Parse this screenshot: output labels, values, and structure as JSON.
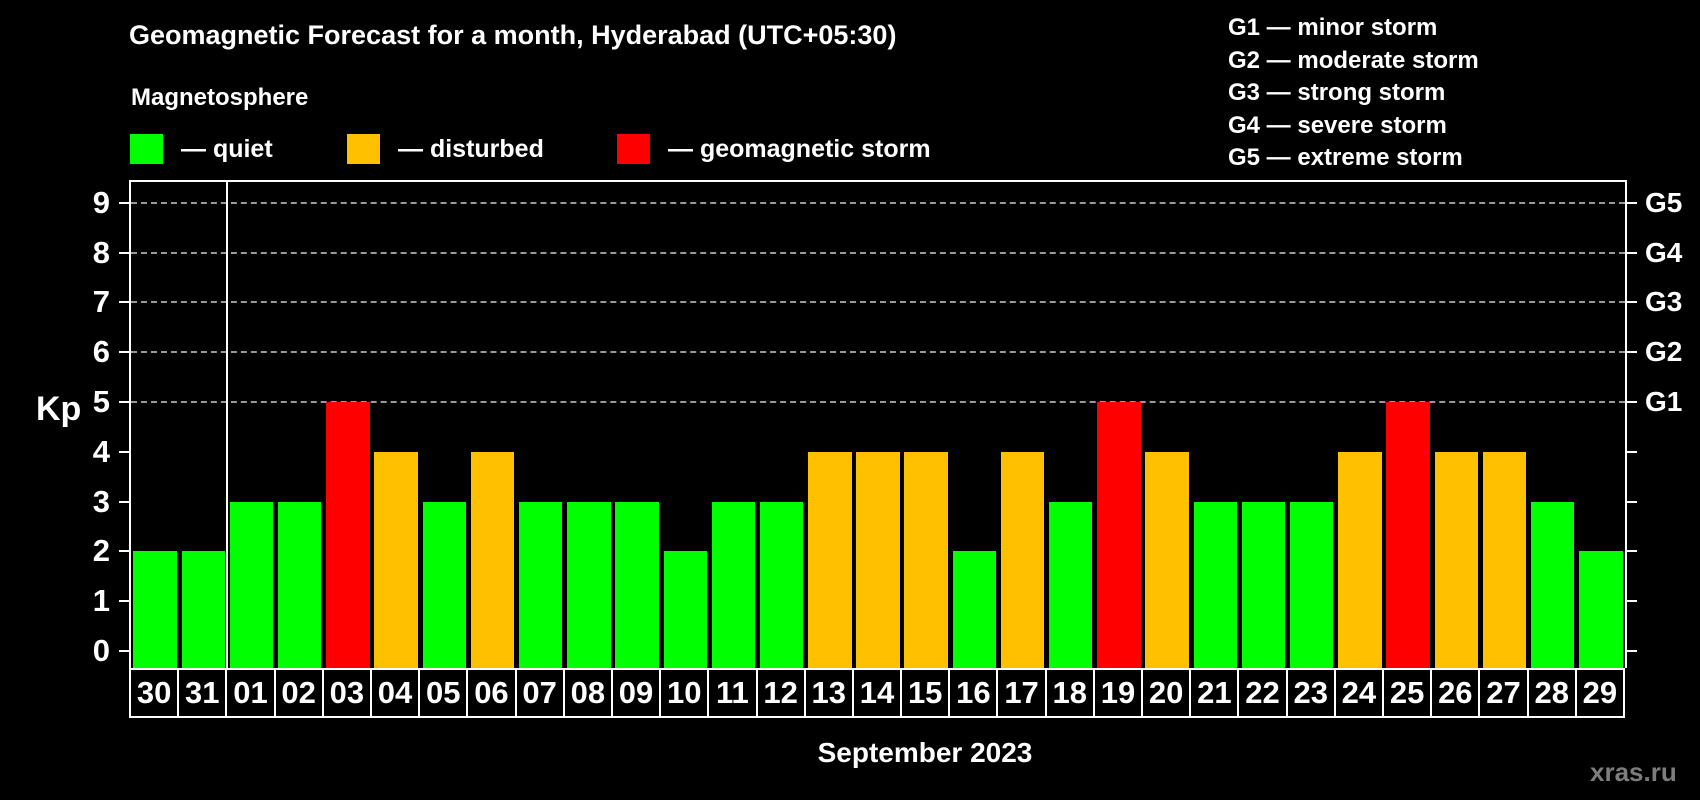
{
  "title": "Geomagnetic Forecast for a month, Hyderabad (UTC+05:30)",
  "subtitle": "Magnetosphere",
  "legend": {
    "items": [
      {
        "name": "quiet",
        "label": "— quiet",
        "color": "#00ff00"
      },
      {
        "name": "disturbed",
        "label": "— disturbed",
        "color": "#ffc000"
      },
      {
        "name": "storm",
        "label": "— geomagnetic storm",
        "color": "#ff0000"
      }
    ]
  },
  "g_legend": [
    "G1 — minor storm",
    "G2 — moderate storm",
    "G3 — strong storm",
    "G4 — severe storm",
    "G5 — extreme storm"
  ],
  "axis": {
    "y_label": "Kp",
    "y_ticks": [
      0,
      1,
      2,
      3,
      4,
      5,
      6,
      7,
      8,
      9
    ],
    "right_labels": [
      {
        "kp": 5,
        "label": "G1"
      },
      {
        "kp": 6,
        "label": "G2"
      },
      {
        "kp": 7,
        "label": "G3"
      },
      {
        "kp": 8,
        "label": "G4"
      },
      {
        "kp": 9,
        "label": "G5"
      }
    ]
  },
  "x_label": "September 2023",
  "watermark": "xras.ru",
  "chart_data": {
    "type": "bar",
    "title": "Geomagnetic Forecast for a month, Hyderabad (UTC+05:30)",
    "xlabel": "September 2023",
    "ylabel": "Kp",
    "ylim": [
      0,
      9
    ],
    "grid": "dashed horizontal lines at Kp 5-9 only",
    "legend_position": "top-left",
    "categories": [
      "30",
      "31",
      "01",
      "02",
      "03",
      "04",
      "05",
      "06",
      "07",
      "08",
      "09",
      "10",
      "11",
      "12",
      "13",
      "14",
      "15",
      "16",
      "17",
      "18",
      "19",
      "20",
      "21",
      "22",
      "23",
      "24",
      "25",
      "26",
      "27",
      "28",
      "29"
    ],
    "values": [
      2,
      2,
      3,
      3,
      5,
      4,
      3,
      4,
      3,
      3,
      3,
      2,
      3,
      3,
      4,
      4,
      4,
      2,
      4,
      3,
      5,
      4,
      3,
      3,
      3,
      4,
      5,
      4,
      4,
      3,
      2
    ],
    "statuses": [
      "quiet",
      "quiet",
      "quiet",
      "quiet",
      "storm",
      "disturbed",
      "quiet",
      "disturbed",
      "quiet",
      "quiet",
      "quiet",
      "quiet",
      "quiet",
      "quiet",
      "disturbed",
      "disturbed",
      "disturbed",
      "quiet",
      "disturbed",
      "quiet",
      "storm",
      "disturbed",
      "quiet",
      "quiet",
      "quiet",
      "disturbed",
      "storm",
      "disturbed",
      "disturbed",
      "quiet",
      "quiet"
    ],
    "colors": {
      "quiet": "#00ff00",
      "disturbed": "#ffc000",
      "storm": "#ff0000"
    },
    "gridline_levels": [
      5,
      6,
      7,
      8,
      9
    ],
    "month_separator_after_index": 1
  }
}
